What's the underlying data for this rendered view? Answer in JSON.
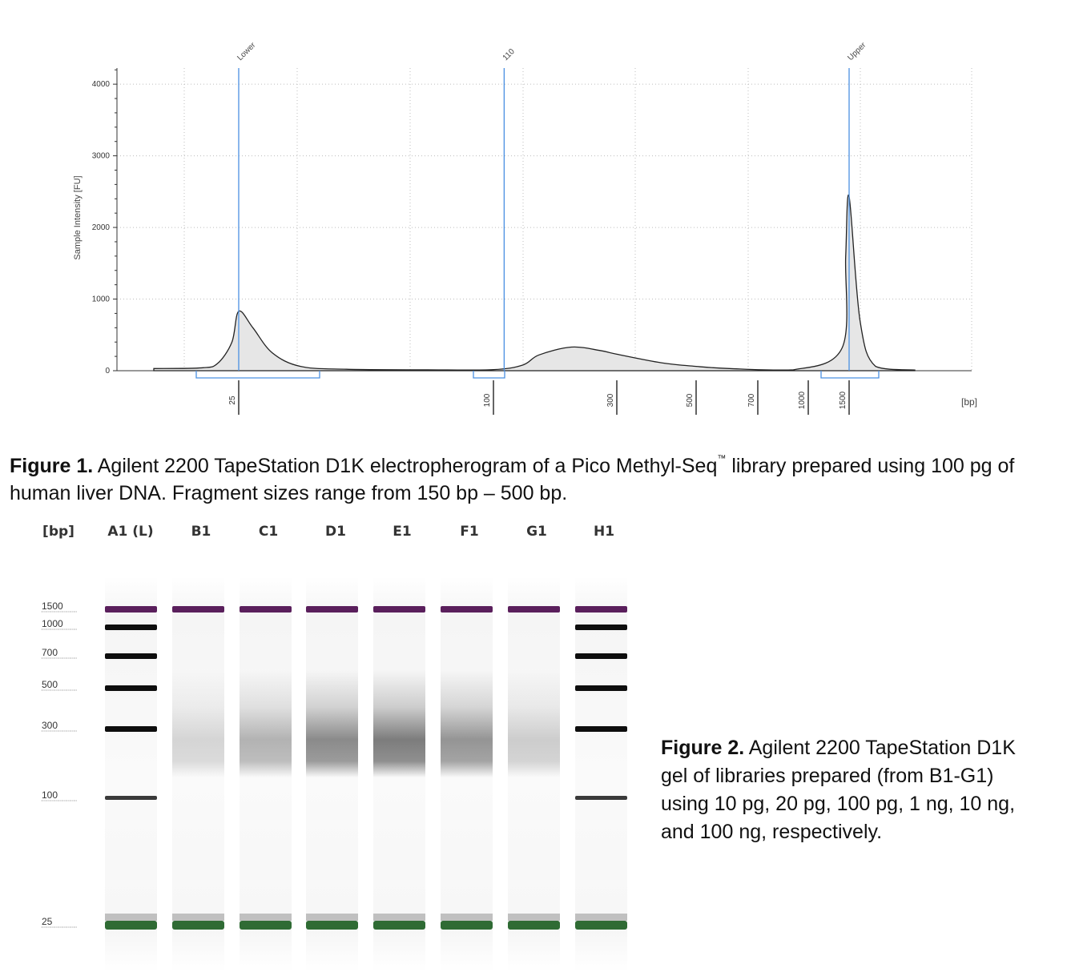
{
  "figure1": {
    "caption_bold": "Figure 1.",
    "caption_text_a": " Agilent 2200 TapeStation D1K electropherogram of a Pico Methyl-Seq",
    "caption_tm": "™",
    "caption_text_b": " library prepared using 100 pg of human liver DNA. Fragment sizes range from 150 bp – 500 bp."
  },
  "figure2": {
    "caption_bold": "Figure 2.",
    "caption_text": " Agilent 2200 TapeStation D1K gel of libraries prepared (from B1-G1) using 10 pg, 20 pg, 100 pg, 1 ng, 10 ng, and 100 ng, respectively."
  },
  "chart_data": [
    {
      "type": "line",
      "title": "",
      "ylabel": "Sample Intensity [FU]",
      "xlabel": "[bp]",
      "ylim": [
        0,
        4200
      ],
      "y_ticks": [
        0,
        1000,
        2000,
        3000,
        4000
      ],
      "x_size_ticks": [
        "25",
        "100",
        "300",
        "500",
        "700",
        "1000",
        "1500"
      ],
      "peak_markers": [
        {
          "label": "Lower",
          "size_bp": 25
        },
        {
          "label": "110",
          "size_bp": 110
        },
        {
          "label": "Upper",
          "size_bp": 1500
        }
      ],
      "grid": true,
      "series": [
        {
          "name": "Sample",
          "x_bp": [
            15,
            20,
            22,
            24,
            25,
            27,
            30,
            35,
            45,
            70,
            100,
            130,
            150,
            200,
            260,
            300,
            400,
            500,
            600,
            900,
            1400,
            1450,
            1500,
            1560,
            1650,
            1900
          ],
          "y_fu": [
            30,
            40,
            100,
            400,
            830,
            600,
            250,
            60,
            20,
            12,
            15,
            80,
            220,
            330,
            280,
            230,
            110,
            60,
            30,
            12,
            320,
            1600,
            2430,
            700,
            60,
            10
          ]
        }
      ]
    },
    {
      "type": "gel",
      "header_label": "[bp]",
      "ladder_sizes": [
        "1500",
        "1000",
        "700",
        "500",
        "300",
        "100",
        "25"
      ],
      "lanes": [
        "A1 (L)",
        "B1",
        "C1",
        "D1",
        "E1",
        "F1",
        "G1",
        "H1"
      ],
      "sample_inputs": [
        "10 pg",
        "20 pg",
        "100 pg",
        "1 ng",
        "10 ng",
        "100 ng"
      ],
      "marker_colors": {
        "upper": "#5a1f5c",
        "lower": "#2f6b34"
      },
      "smear_intensity": [
        0.0,
        0.18,
        0.35,
        0.55,
        0.62,
        0.5,
        0.22,
        0.0
      ],
      "ladder_in_lane": [
        true,
        false,
        false,
        false,
        false,
        false,
        false,
        true
      ]
    }
  ]
}
